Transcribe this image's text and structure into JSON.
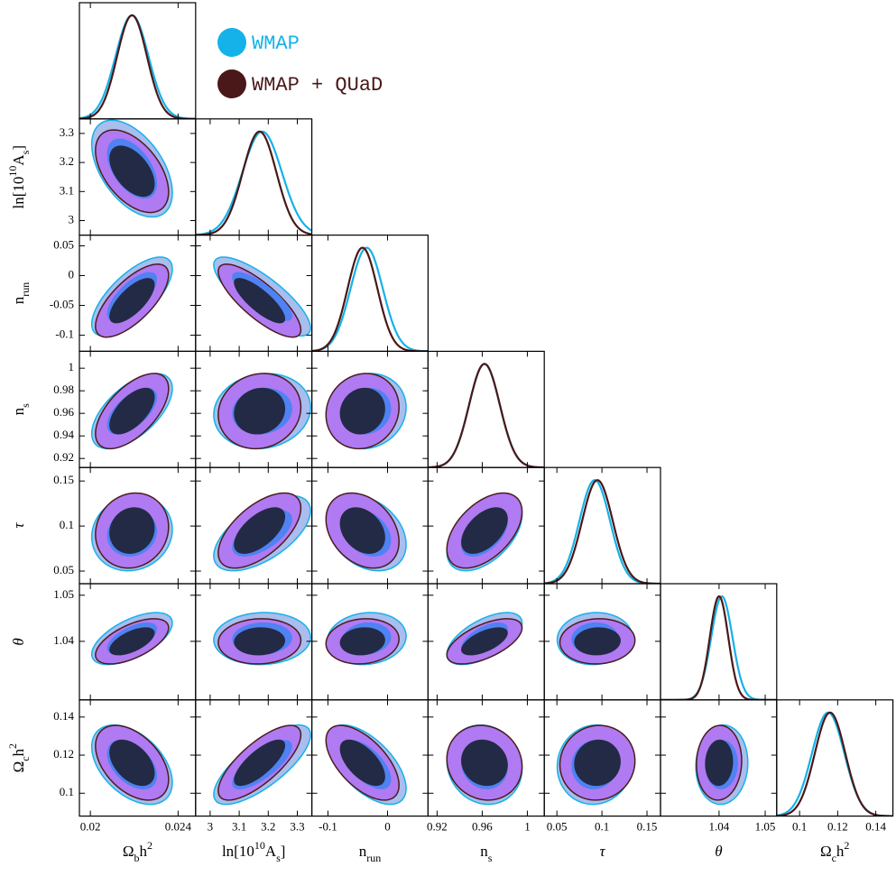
{
  "chart_data": {
    "type": "triangle",
    "parameters": [
      {
        "label": [
          {
            "text": "Ω"
          },
          {
            "text": "b",
            "shift": "sub"
          },
          {
            "text": "h"
          },
          {
            "text": "2",
            "shift": "super"
          }
        ],
        "lim": [
          0.0195,
          0.0248
        ],
        "xticks": [
          0.02,
          0.024
        ]
      },
      {
        "label": [
          {
            "text": "ln[10"
          },
          {
            "text": "10",
            "shift": "super"
          },
          {
            "text": "A"
          },
          {
            "text": "s",
            "shift": "sub"
          },
          {
            "text": "]"
          }
        ],
        "lim": [
          2.95,
          3.35
        ],
        "xticks": [
          3,
          3.1,
          3.2,
          3.3
        ],
        "yticks": [
          3,
          3.1,
          3.2,
          3.3
        ]
      },
      {
        "label": [
          {
            "text": "n"
          },
          {
            "text": "run",
            "shift": "sub"
          }
        ],
        "lim": [
          -0.127,
          0.068
        ],
        "xticks": [
          -0.1,
          0
        ],
        "yticks": [
          -0.1,
          -0.05,
          0,
          0.05
        ]
      },
      {
        "label": [
          {
            "text": "n"
          },
          {
            "text": "s",
            "shift": "sub"
          }
        ],
        "lim": [
          0.912,
          1.015
        ],
        "xticks": [
          0.92,
          0.96,
          1
        ],
        "yticks": [
          0.92,
          0.94,
          0.96,
          0.98,
          1
        ]
      },
      {
        "label": [
          {
            "text": "τ",
            "italic": true
          }
        ],
        "lim": [
          0.036,
          0.165
        ],
        "xticks": [
          0.05,
          0.1,
          0.15
        ],
        "yticks": [
          0.05,
          0.1,
          0.15
        ]
      },
      {
        "label": [
          {
            "text": "θ",
            "italic": true
          }
        ],
        "lim": [
          1.0273,
          1.0525
        ],
        "xticks": [
          1.04,
          1.05
        ],
        "yticks": [
          1.04,
          1.05
        ]
      },
      {
        "label": [
          {
            "text": "Ω"
          },
          {
            "text": "c",
            "shift": "sub"
          },
          {
            "text": "h"
          },
          {
            "text": "2",
            "shift": "super"
          }
        ],
        "lim": [
          0.088,
          0.149
        ],
        "xticks": [
          0.1,
          0.12,
          0.14
        ],
        "yticks": [
          0.1,
          0.12,
          0.14
        ]
      }
    ],
    "series": [
      {
        "name": "WMAP",
        "color": "#14b2e8",
        "fill_95": "#a9bdef",
        "fill_68": "#4f82f3",
        "outline": "#14b2e8",
        "means": [
          0.0219,
          3.179,
          -0.035,
          0.962,
          0.092,
          1.0406,
          0.115
        ],
        "sigmas": [
          0.00075,
          0.068,
          0.027,
          0.0136,
          0.017,
          0.0023,
          0.0085
        ]
      },
      {
        "name": "WMAP + QUaD",
        "color": "#4a1818",
        "fill_95": "#b07af2",
        "fill_68": "#232a45",
        "outline": "#4a1c1c",
        "means": [
          0.0219,
          3.17,
          -0.042,
          0.962,
          0.095,
          1.04,
          0.116
        ],
        "sigmas": [
          0.00068,
          0.058,
          0.025,
          0.0136,
          0.017,
          0.002,
          0.008
        ]
      }
    ],
    "correlation": [
      [
        -0.5
      ],
      [
        0.7,
        -0.8
      ],
      [
        0.6,
        0.1,
        0.1
      ],
      [
        0.1,
        0.6,
        -0.3,
        0.5
      ],
      [
        0.6,
        0.05,
        0.1,
        0.6,
        0.05
      ],
      [
        -0.45,
        0.75,
        -0.6,
        -0.1,
        0.05,
        0.05
      ]
    ]
  }
}
